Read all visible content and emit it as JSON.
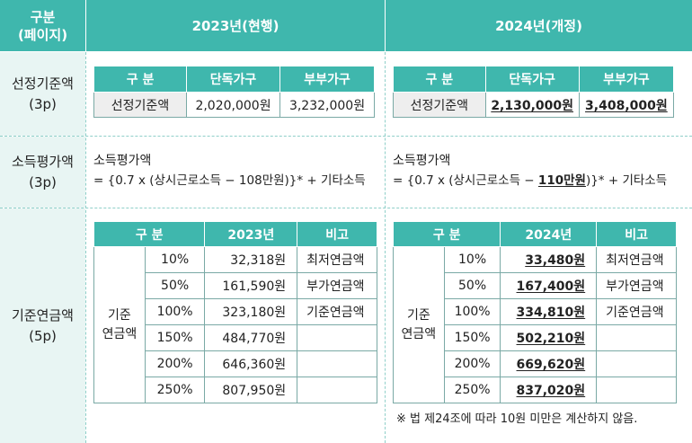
{
  "header": {
    "col0_line1": "구분",
    "col0_line2": "(페이지)",
    "col1": "2023년(현행)",
    "col2": "2024년(개정)"
  },
  "rows": {
    "r1_label_line1": "선정기준액",
    "r1_label_line2": "(3p)",
    "r2_label_line1": "소득평가액",
    "r2_label_line2": "(3p)",
    "r3_label_line1": "기준연금액",
    "r3_label_line2": "(5p)"
  },
  "criteria": {
    "head": [
      "구  분",
      "단독가구",
      "부부가구"
    ],
    "label": "선정기준액",
    "y2023": [
      "2,020,000원",
      "3,232,000원"
    ],
    "y2024": [
      "2,130,000원",
      "3,408,000원"
    ]
  },
  "income": {
    "title": "소득평가액",
    "y2023": {
      "prefix": "= {0.7 x (상시근로소득 − ",
      "amount": "108만원",
      "suffix": ")}* + 기타소득"
    },
    "y2024": {
      "prefix": "= {0.7 x (상시근로소득 − ",
      "amount": "110만원",
      "suffix": ")}* + 기타소득"
    }
  },
  "pension": {
    "head_gubun": "구    분",
    "head_2023": "2023년",
    "head_2024": "2024년",
    "head_note": "비고",
    "group_line1": "기준",
    "group_line2": "연금액",
    "percents": [
      "10%",
      "50%",
      "100%",
      "150%",
      "200%",
      "250%"
    ],
    "y2023": [
      "32,318원",
      "161,590원",
      "323,180원",
      "484,770원",
      "646,360원",
      "807,950원"
    ],
    "y2024": [
      "33,480원",
      "167,400원",
      "334,810원",
      "502,210원",
      "669,620원",
      "837,020원"
    ],
    "notes": [
      "최저연금액",
      "부가연금액",
      "기준연금액",
      "",
      "",
      ""
    ]
  },
  "footnote": "※ 법 제24조에 따라 10원 미만은 계산하지 않음."
}
